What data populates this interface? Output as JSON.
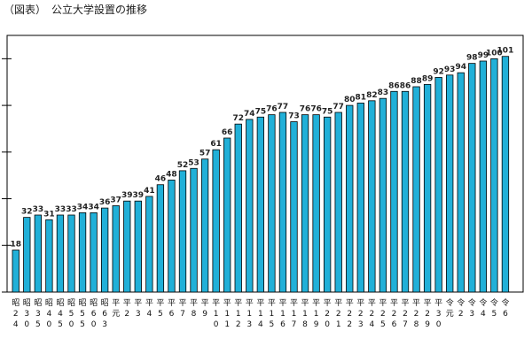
{
  "title": "（図表）　公立大学設置の推移",
  "chart_data": {
    "type": "bar",
    "title": "（図表）　公立大学設置の推移",
    "xlabel": "",
    "ylabel": "",
    "ylim": [
      0,
      110
    ],
    "y_ticks": [
      0,
      20,
      40,
      60,
      80,
      100
    ],
    "grid": false,
    "bar_color": "#21b0d8",
    "bar_edge_color": "#000000",
    "categories": [
      "昭24",
      "昭30",
      "昭35",
      "昭40",
      "昭45",
      "昭50",
      "昭55",
      "昭60",
      "昭63",
      "平元",
      "平2",
      "平3",
      "平4",
      "平5",
      "平6",
      "平7",
      "平8",
      "平9",
      "平10",
      "平11",
      "平12",
      "平13",
      "平14",
      "平15",
      "平16",
      "平17",
      "平18",
      "平19",
      "平20",
      "平21",
      "平22",
      "平23",
      "平24",
      "平25",
      "平26",
      "平27",
      "平28",
      "平29",
      "平30",
      "令元",
      "令2",
      "令3",
      "令4",
      "令5",
      "令6"
    ],
    "values": [
      18,
      32,
      33,
      31,
      33,
      33,
      34,
      34,
      36,
      37,
      39,
      39,
      41,
      46,
      48,
      52,
      53,
      57,
      61,
      66,
      72,
      74,
      75,
      76,
      77,
      73,
      76,
      76,
      75,
      77,
      80,
      81,
      82,
      83,
      86,
      86,
      88,
      89,
      92,
      93,
      94,
      98,
      99,
      100,
      101
    ],
    "data_labels": [
      "18",
      "32",
      "33",
      "31",
      "33",
      "33",
      "34",
      "34",
      "36",
      "37",
      "39",
      "39",
      "41",
      "46",
      "48",
      "52",
      "53",
      "57",
      "61",
      "66",
      "72",
      "74",
      "75",
      "76",
      "77",
      "73",
      "76",
      "76",
      "75",
      "77",
      "80",
      "81",
      "82",
      "83",
      "86",
      "86",
      "88",
      "89",
      "92",
      "93",
      "94",
      "98",
      "99",
      "100",
      "101"
    ]
  }
}
